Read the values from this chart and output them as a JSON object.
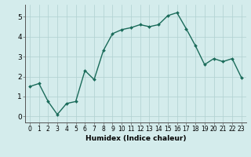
{
  "x": [
    0,
    1,
    2,
    3,
    4,
    5,
    6,
    7,
    8,
    9,
    10,
    11,
    12,
    13,
    14,
    15,
    16,
    17,
    18,
    19,
    20,
    21,
    22,
    23
  ],
  "y": [
    1.5,
    1.65,
    0.75,
    0.1,
    0.65,
    0.75,
    2.3,
    1.85,
    3.3,
    4.15,
    4.35,
    4.45,
    4.6,
    4.5,
    4.6,
    5.05,
    5.2,
    4.4,
    3.55,
    2.6,
    2.9,
    2.75,
    2.9,
    1.95
  ],
  "line_color": "#1a6b5a",
  "marker": "D",
  "markersize": 2,
  "linewidth": 1.0,
  "xlabel": "Humidex (Indice chaleur)",
  "xlim": [
    -0.5,
    23.5
  ],
  "ylim": [
    -0.3,
    5.6
  ],
  "yticks": [
    0,
    1,
    2,
    3,
    4,
    5
  ],
  "xticks": [
    0,
    1,
    2,
    3,
    4,
    5,
    6,
    7,
    8,
    9,
    10,
    11,
    12,
    13,
    14,
    15,
    16,
    17,
    18,
    19,
    20,
    21,
    22,
    23
  ],
  "bg_color": "#d4ecec",
  "grid_color": "#b0d0d0",
  "tick_labelsize": 5.5,
  "xlabel_fontsize": 6.5,
  "ytick_labelsize": 6.5
}
